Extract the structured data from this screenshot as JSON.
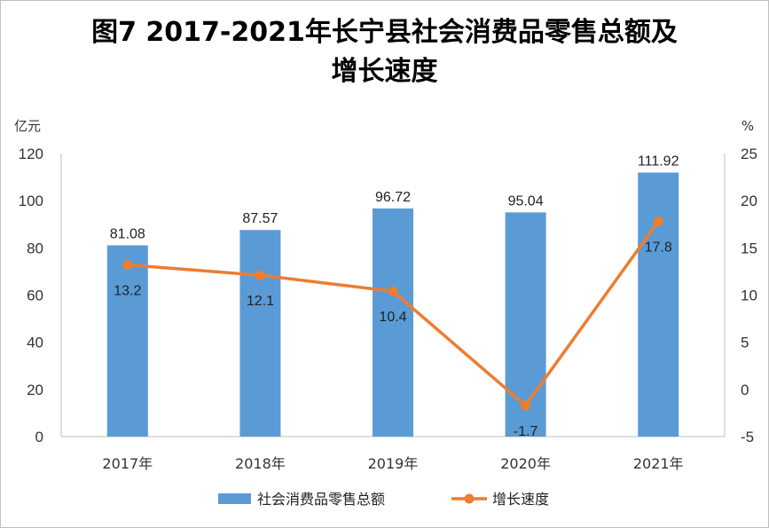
{
  "title_line1": "图7  2017-2021年长宁县社会消费品零售总额及",
  "title_line2": "增长速度",
  "chart_data": {
    "type": "bar+line",
    "title": "图7  2017-2021年长宁县社会消费品零售总额及增长速度",
    "categories": [
      "2017年",
      "2018年",
      "2019年",
      "2020年",
      "2021年"
    ],
    "series": [
      {
        "name": "社会消费品零售总额",
        "type": "bar",
        "axis": "left",
        "color": "#5b9bd5",
        "values": [
          81.08,
          87.57,
          96.72,
          95.04,
          111.92
        ],
        "labels": [
          "81.08",
          "87.57",
          "96.72",
          "95.04",
          "111.92"
        ]
      },
      {
        "name": "增长速度",
        "type": "line",
        "axis": "right",
        "color": "#ed7d31",
        "values": [
          13.2,
          12.1,
          10.4,
          -1.7,
          17.8
        ],
        "labels": [
          "13.2",
          "12.1",
          "10.4",
          "-1.7",
          "17.8"
        ],
        "negative_label_color": "#ff0000"
      }
    ],
    "left_axis": {
      "unit": "亿元",
      "ylim": [
        0,
        120
      ],
      "ticks": [
        "0",
        "20",
        "40",
        "60",
        "80",
        "100",
        "120"
      ]
    },
    "right_axis": {
      "unit": "%",
      "ylim": [
        -5,
        25
      ],
      "ticks": [
        "-5",
        "0",
        "5",
        "10",
        "15",
        "20",
        "25"
      ]
    },
    "grid": false,
    "legend_position": "bottom"
  }
}
